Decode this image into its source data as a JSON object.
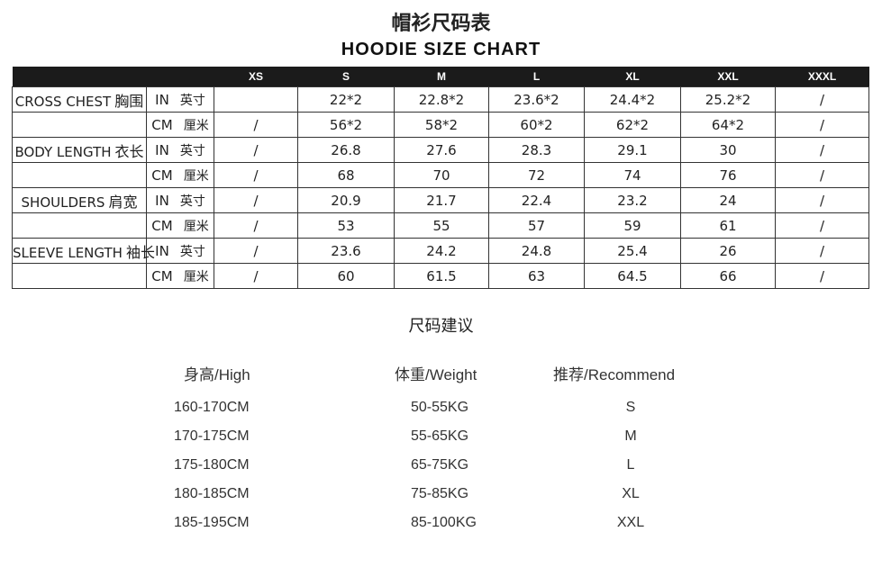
{
  "title_cn": "帽衫尺码表",
  "title_en": "HOODIE  SIZE CHART",
  "sizes": [
    "XS",
    "S",
    "M",
    "L",
    "XL",
    "XXL",
    "XXXL"
  ],
  "rows": [
    {
      "label": "CROSS CHEST",
      "label_cn": "胸围",
      "unit": "IN",
      "unit_cn": "英寸",
      "values": [
        "",
        "22*2",
        "22.8*2",
        "23.6*2",
        "24.4*2",
        "25.2*2",
        "/"
      ]
    },
    {
      "label": "",
      "label_cn": "",
      "unit": "CM",
      "unit_cn": "厘米",
      "values": [
        "/",
        "56*2",
        "58*2",
        "60*2",
        "62*2",
        "64*2",
        "/"
      ]
    },
    {
      "label": "BODY LENGTH",
      "label_cn": "衣长",
      "unit": "IN",
      "unit_cn": "英寸",
      "values": [
        "/",
        "26.8",
        "27.6",
        "28.3",
        "29.1",
        "30",
        "/"
      ]
    },
    {
      "label": "",
      "label_cn": "",
      "unit": "CM",
      "unit_cn": "厘米",
      "values": [
        "/",
        "68",
        "70",
        "72",
        "74",
        "76",
        "/"
      ]
    },
    {
      "label": "SHOULDERS",
      "label_cn": "肩宽",
      "unit": "IN",
      "unit_cn": "英寸",
      "values": [
        "/",
        "20.9",
        "21.7",
        "22.4",
        "23.2",
        "24",
        "/"
      ]
    },
    {
      "label": "",
      "label_cn": "",
      "unit": "CM",
      "unit_cn": "厘米",
      "values": [
        "/",
        "53",
        "55",
        "57",
        "59",
        "61",
        "/"
      ]
    },
    {
      "label": "SLEEVE LENGTH",
      "label_cn": "袖长",
      "unit": "IN",
      "unit_cn": "英寸",
      "values": [
        "/",
        "23.6",
        "24.2",
        "24.8",
        "25.4",
        "26",
        "/"
      ]
    },
    {
      "label": "",
      "label_cn": "",
      "unit": "CM",
      "unit_cn": "厘米",
      "values": [
        "/",
        "60",
        "61.5",
        "63",
        "64.5",
        "66",
        "/"
      ]
    }
  ],
  "recommend": {
    "title": "尺码建议",
    "headers": {
      "height": "身高/High",
      "weight": "体重/Weight",
      "size": "推荐/Recommend"
    },
    "heights": [
      "160-170CM",
      "170-175CM",
      "175-180CM",
      "180-185CM",
      "185-195CM"
    ],
    "weights": [
      "50-55KG",
      "55-65KG",
      "65-75KG",
      "75-85KG",
      "85-100KG"
    ],
    "sizes": [
      "S",
      "M",
      "L",
      "XL",
      "XXL"
    ]
  }
}
